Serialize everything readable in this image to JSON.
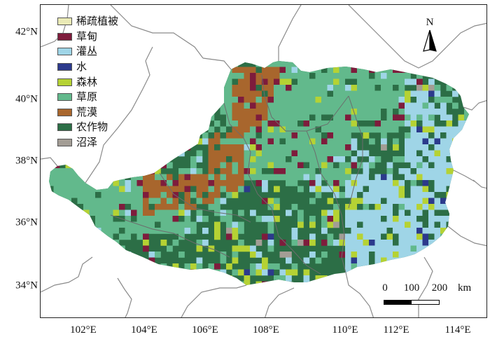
{
  "map": {
    "latitude_labels": [
      {
        "value": 42,
        "text": "42°N"
      },
      {
        "value": 40,
        "text": "40°N"
      },
      {
        "value": 38,
        "text": "38°N"
      },
      {
        "value": 36,
        "text": "36°N"
      },
      {
        "value": 34,
        "text": "34°N"
      }
    ],
    "longitude_labels": [
      {
        "value": 102,
        "text": "102°E"
      },
      {
        "value": 104,
        "text": "104°E"
      },
      {
        "value": 106,
        "text": "106°E"
      },
      {
        "value": 108,
        "text": "108°E"
      },
      {
        "value": 110,
        "text": "110°E"
      },
      {
        "value": 112,
        "text": "112°E"
      },
      {
        "value": 114,
        "text": "114°E"
      }
    ],
    "north_arrow": {
      "label": "N",
      "icon": "north-arrow-icon"
    },
    "scale_bar": {
      "ticks": [
        "0",
        "100",
        "200"
      ],
      "unit": "km"
    },
    "legend": [
      {
        "label": "稀疏植被",
        "color": "#eaeab6"
      },
      {
        "label": "草甸",
        "color": "#7e1c3c"
      },
      {
        "label": "灌丛",
        "color": "#9fd5e7"
      },
      {
        "label": "水",
        "color": "#2c3a8c"
      },
      {
        "label": "森林",
        "color": "#b5d234"
      },
      {
        "label": "草原",
        "color": "#62b98c"
      },
      {
        "label": "荒漠",
        "color": "#a8662d"
      },
      {
        "label": "农作物",
        "color": "#2c6e46"
      },
      {
        "label": "沼泽",
        "color": "#a39d95"
      }
    ]
  }
}
